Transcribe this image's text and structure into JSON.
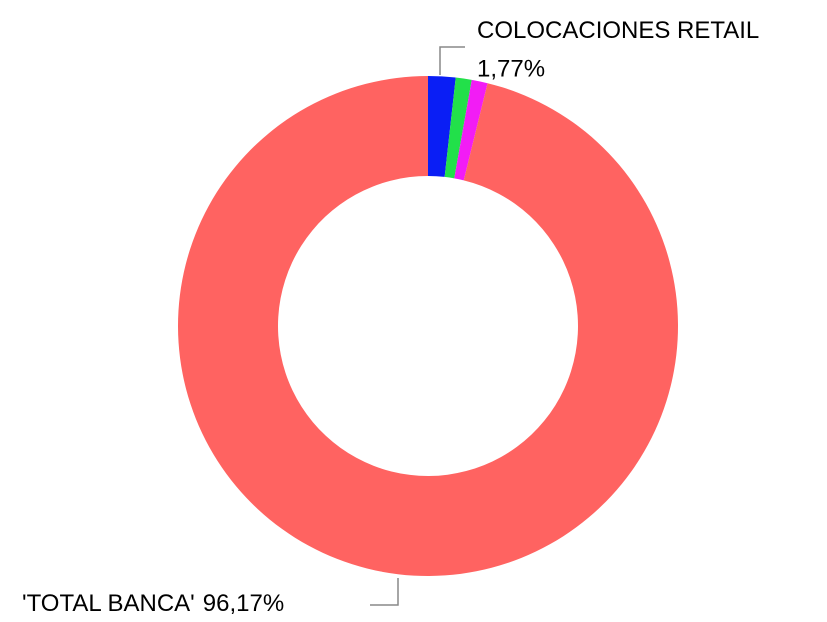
{
  "chart_data": {
    "type": "donut",
    "categories": [
      "COLOCACIONES RETAIL",
      null,
      null,
      "'TOTAL BANCA'"
    ],
    "values": [
      1.77,
      1.03,
      1.03,
      96.17
    ],
    "value_labels": [
      "1,77%",
      null,
      null,
      "96,17%"
    ],
    "colors": [
      "#0a1ef5",
      "#22e04a",
      "#f21cf5",
      "#ff6361"
    ]
  }
}
